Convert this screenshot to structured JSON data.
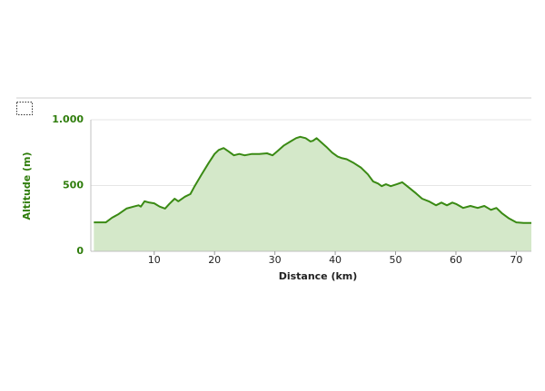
{
  "chart_data": {
    "type": "area",
    "x_label": "Distance (km)",
    "y_label": "Altitude (m)",
    "x": [
      0,
      2,
      3,
      4,
      5.4,
      6.6,
      7.4,
      7.8,
      8.4,
      9.2,
      10,
      10.9,
      11.8,
      12.5,
      13.4,
      14,
      15.1,
      16,
      16.7,
      17.8,
      19,
      20,
      20.7,
      21.5,
      22.3,
      23.2,
      24.1,
      25,
      26.2,
      27.4,
      28.7,
      29.6,
      30.5,
      31.5,
      32.6,
      33.5,
      34.2,
      35.1,
      35.9,
      36.3,
      36.9,
      37.5,
      38.5,
      39.5,
      40.4,
      41,
      41.9,
      43.1,
      44.3,
      45.4,
      46.3,
      47.1,
      47.7,
      48.4,
      49.2,
      50.2,
      51.1,
      52.2,
      53.4,
      54.4,
      55.5,
      56.7,
      57.6,
      58.5,
      59.4,
      60,
      61.2,
      62.4,
      63.6,
      64.7,
      65.8,
      66.7,
      67.6,
      68.8,
      70,
      71.2,
      72.5
    ],
    "values": [
      220,
      220,
      255,
      280,
      325,
      340,
      350,
      340,
      380,
      370,
      365,
      340,
      325,
      360,
      400,
      380,
      415,
      435,
      495,
      580,
      670,
      740,
      770,
      785,
      760,
      730,
      740,
      730,
      740,
      740,
      745,
      730,
      765,
      805,
      835,
      860,
      870,
      860,
      835,
      840,
      860,
      835,
      795,
      750,
      720,
      710,
      700,
      670,
      635,
      585,
      530,
      515,
      495,
      510,
      495,
      510,
      525,
      485,
      440,
      400,
      380,
      350,
      370,
      350,
      370,
      360,
      330,
      345,
      330,
      345,
      315,
      330,
      290,
      250,
      220,
      215,
      215
    ],
    "color": "#3a8a14",
    "fill": "#d4e8c9",
    "xlim": [
      -0.5,
      72.5
    ],
    "xticks": [
      10,
      20,
      30,
      40,
      50,
      60,
      70
    ],
    "ylim": [
      0,
      1000
    ],
    "yticks": [
      0,
      500,
      {
        "value": 1000,
        "label": "1.000"
      }
    ],
    "grid": true
  }
}
